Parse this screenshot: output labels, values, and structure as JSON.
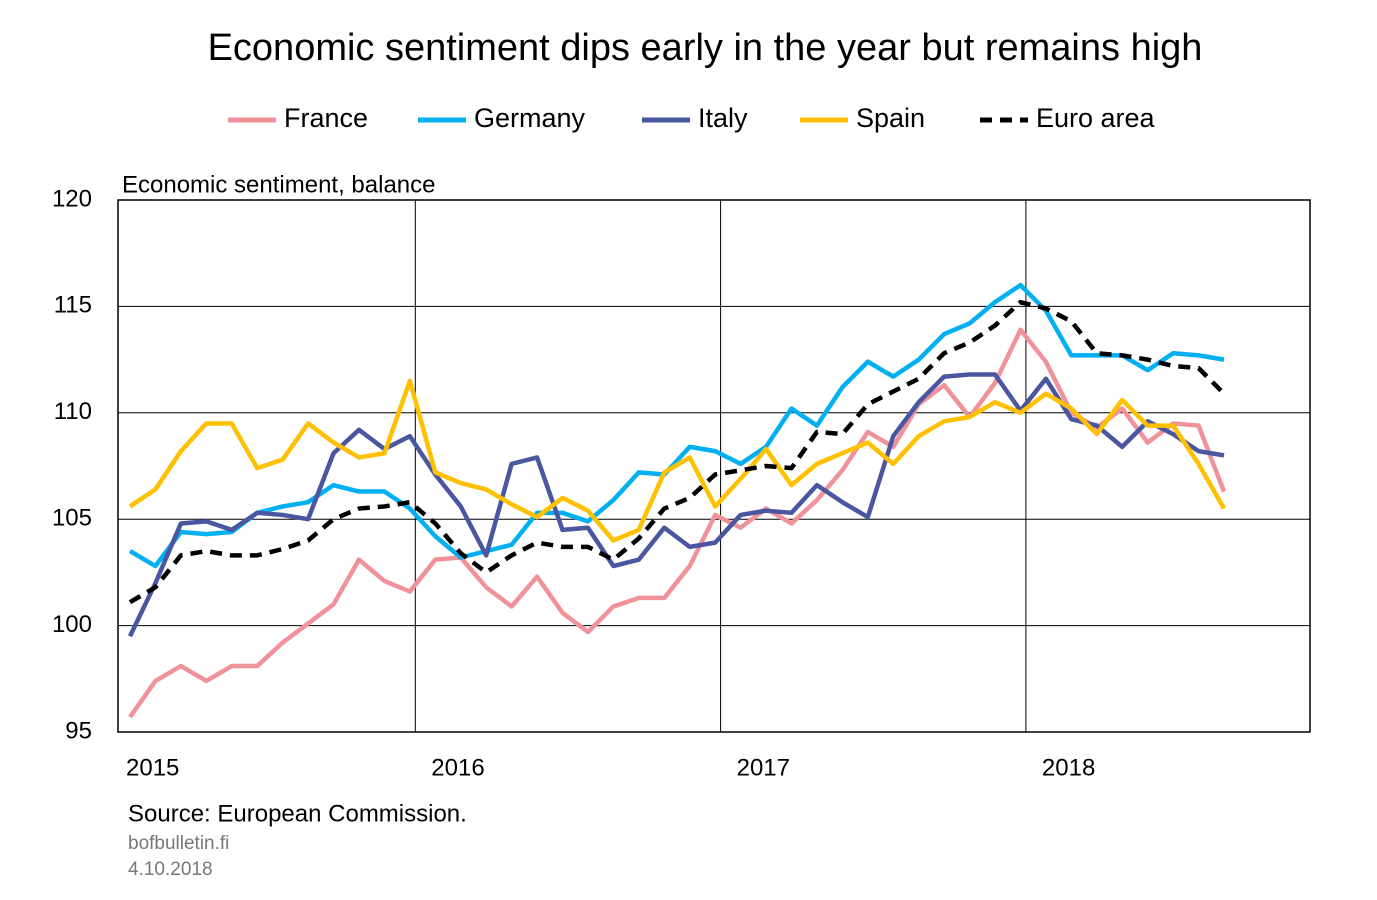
{
  "chart_data": {
    "type": "line",
    "title": "Economic sentiment dips early in the year but remains high",
    "y_label": "Economic sentiment, balance",
    "source": "Source: European Commission.",
    "site": "bofbulletin.fi",
    "date": "4.10.2018",
    "categories": [
      "2015",
      null,
      null,
      null,
      null,
      null,
      null,
      null,
      null,
      null,
      null,
      null,
      "2016",
      null,
      null,
      null,
      null,
      null,
      null,
      null,
      null,
      null,
      null,
      null,
      "2017",
      null,
      null,
      null,
      null,
      null,
      null,
      null,
      null,
      null,
      null,
      null,
      "2018",
      null,
      null,
      null,
      null,
      null,
      null,
      null
    ],
    "ylim": [
      95,
      120
    ],
    "yticks": [
      95,
      100,
      105,
      110,
      115,
      120
    ],
    "grid": true,
    "legend": "top",
    "series": [
      {
        "name": "France",
        "color": "#f0929a",
        "dash": false,
        "values": [
          95.7,
          97.4,
          98.1,
          97.4,
          98.1,
          98.1,
          99.2,
          100.1,
          101.0,
          103.1,
          102.1,
          101.6,
          103.1,
          103.2,
          101.8,
          100.9,
          102.3,
          100.6,
          99.7,
          100.9,
          101.3,
          101.3,
          102.8,
          105.2,
          104.6,
          105.5,
          104.8,
          105.9,
          107.3,
          109.1,
          108.4,
          110.4,
          111.3,
          109.8,
          111.4,
          113.9,
          112.4,
          110.0,
          109.3,
          110.2,
          108.6,
          109.5,
          109.4,
          106.3
        ]
      },
      {
        "name": "Germany",
        "color": "#00b0f0",
        "dash": false,
        "values": [
          103.5,
          102.8,
          104.4,
          104.3,
          104.4,
          105.3,
          105.6,
          105.8,
          106.6,
          106.3,
          106.3,
          105.5,
          104.2,
          103.2,
          103.5,
          103.8,
          105.3,
          105.3,
          104.9,
          105.9,
          107.2,
          107.1,
          108.4,
          108.2,
          107.6,
          108.4,
          110.2,
          109.4,
          111.2,
          112.4,
          111.7,
          112.5,
          113.7,
          114.2,
          115.2,
          116.0,
          114.8,
          112.7,
          112.7,
          112.7,
          112.0,
          112.8,
          112.7,
          112.5
        ]
      },
      {
        "name": "Italy",
        "color": "#4a56a0",
        "dash": false,
        "values": [
          99.5,
          102.0,
          104.8,
          104.9,
          104.5,
          105.3,
          105.2,
          105.0,
          108.1,
          109.2,
          108.3,
          108.9,
          107.1,
          105.6,
          103.3,
          107.6,
          107.9,
          104.5,
          104.6,
          102.8,
          103.1,
          104.6,
          103.7,
          103.9,
          105.2,
          105.4,
          105.3,
          106.6,
          105.8,
          105.1,
          108.9,
          110.5,
          111.7,
          111.8,
          111.8,
          110.1,
          111.6,
          109.7,
          109.4,
          108.4,
          109.6,
          109.0,
          108.2,
          108.0
        ]
      },
      {
        "name": "Spain",
        "color": "#ffc000",
        "dash": false,
        "values": [
          105.6,
          106.4,
          108.2,
          109.5,
          109.5,
          107.4,
          107.8,
          109.5,
          108.6,
          107.9,
          108.1,
          111.5,
          107.2,
          106.7,
          106.4,
          105.7,
          105.1,
          106.0,
          105.4,
          104.0,
          104.5,
          107.2,
          107.9,
          105.6,
          106.9,
          108.3,
          106.6,
          107.6,
          108.1,
          108.6,
          107.6,
          108.9,
          109.6,
          109.8,
          110.5,
          110.0,
          110.9,
          110.2,
          109.0,
          110.6,
          109.4,
          109.4,
          107.6,
          105.5
        ]
      },
      {
        "name": "Euro area",
        "color": "#000000",
        "dash": true,
        "values": [
          101.1,
          101.8,
          103.3,
          103.5,
          103.3,
          103.3,
          103.6,
          104.0,
          105.0,
          105.5,
          105.6,
          105.8,
          104.8,
          103.4,
          102.5,
          103.3,
          103.9,
          103.7,
          103.7,
          103.1,
          104.1,
          105.5,
          106.0,
          107.1,
          107.3,
          107.5,
          107.4,
          109.1,
          109.0,
          110.4,
          111.0,
          111.6,
          112.8,
          113.3,
          114.1,
          115.2,
          114.9,
          114.3,
          112.8,
          112.7,
          112.5,
          112.2,
          112.1,
          110.9
        ]
      }
    ]
  }
}
